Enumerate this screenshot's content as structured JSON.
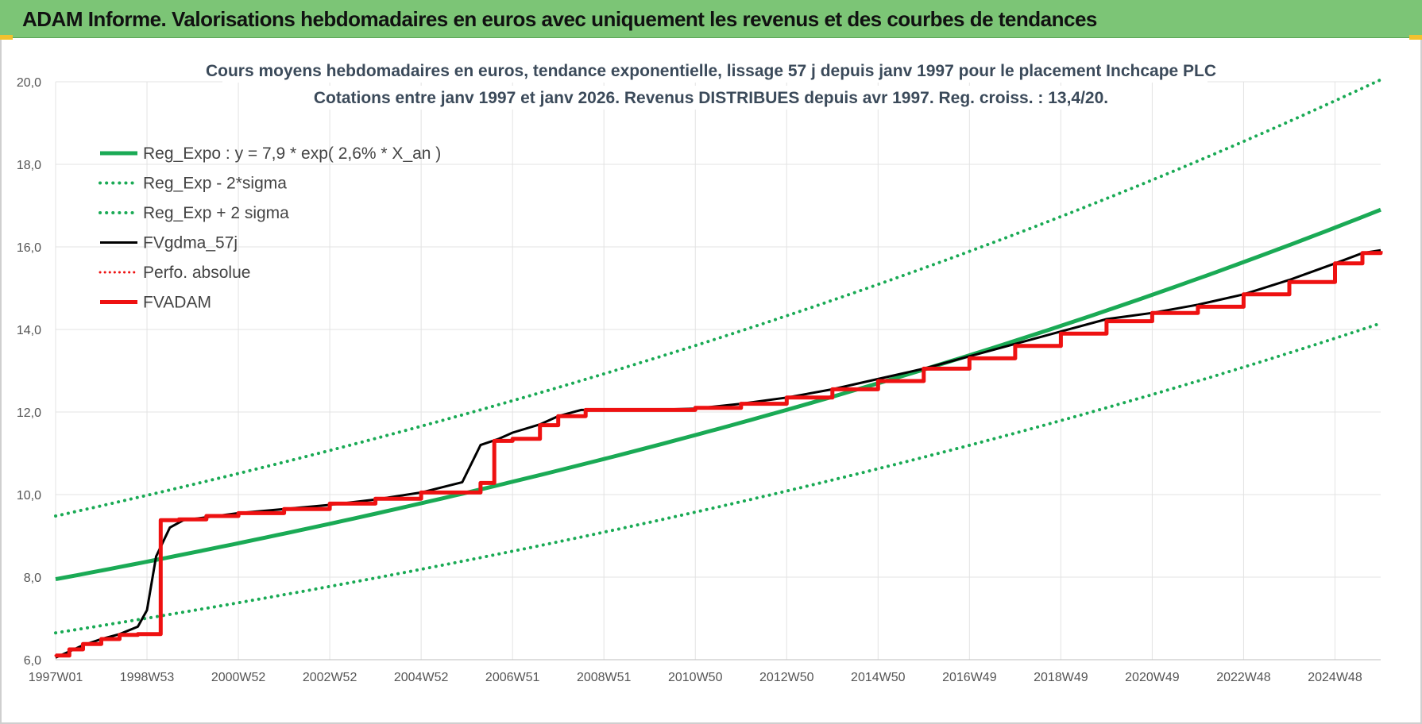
{
  "banner": {
    "title": "ADAM Informe. Valorisations hebdomadaires en euros avec uniquement les revenus et des courbes de tendances"
  },
  "colors": {
    "banner_bg": "#7cc576",
    "green": "#1aaa55",
    "red": "#ee1111",
    "black": "#000000",
    "accent": "#f2c12e"
  },
  "chart_data": {
    "type": "line",
    "title": "Cours moyens hebdomadaires en euros, tendance exponentielle, lissage 57 j depuis janv 1997 pour le placement Inchcape PLC",
    "subtitle": "Cotations entre janv 1997 et janv 2026. Revenus DISTRIBUES depuis avr 1997. Reg. croiss. : 13,4/20.",
    "xlabel": "",
    "ylabel": "",
    "x_range": [
      1997.0,
      2026.0
    ],
    "ylim": [
      6.0,
      20.0
    ],
    "y_ticks": [
      "6,0",
      "8,0",
      "10,0",
      "12,0",
      "14,0",
      "16,0",
      "18,0",
      "20,0"
    ],
    "x_tick_labels": [
      "1997W01",
      "1998W53",
      "2000W52",
      "2002W52",
      "2004W52",
      "2006W51",
      "2008W51",
      "2010W50",
      "2012W50",
      "2014W50",
      "2016W49",
      "2018W49",
      "2020W49",
      "2022W48",
      "2024W48"
    ],
    "x_tick_years": [
      1997.0,
      1999.0,
      2001.0,
      2003.0,
      2005.0,
      2007.0,
      2009.0,
      2011.0,
      2013.0,
      2015.0,
      2017.0,
      2019.0,
      2021.0,
      2023.0,
      2025.0
    ],
    "grid": true,
    "legend_position": "top-left",
    "series": [
      {
        "name": "Reg_Expo : y = 7,9 * exp( 2,6% *  X_an )",
        "style": "solid-green-thick",
        "x": [
          1997.0,
          2026.0
        ],
        "y": [
          7.95,
          16.9
        ],
        "curve": "exponential"
      },
      {
        "name": "Reg_Exp - 2*sigma",
        "style": "dotted-green",
        "x": [
          1997.0,
          2026.0
        ],
        "y": [
          6.65,
          14.15
        ],
        "curve": "exponential"
      },
      {
        "name": "Reg_Exp + 2 sigma",
        "style": "dotted-green",
        "x": [
          1997.0,
          2026.0
        ],
        "y": [
          9.48,
          20.05
        ],
        "curve": "exponential"
      },
      {
        "name": "FVgdma_57j",
        "style": "solid-black",
        "x": [
          1997.0,
          1997.3,
          1997.6,
          1998.0,
          1998.4,
          1998.8,
          1999.0,
          1999.2,
          1999.5,
          1999.8,
          2000.3,
          2001.0,
          2002.0,
          2003.0,
          2004.0,
          2005.0,
          2005.9,
          2006.3,
          2006.7,
          2007.0,
          2007.6,
          2008.0,
          2008.5,
          2010.0,
          2011.0,
          2012.0,
          2013.0,
          2014.0,
          2015.0,
          2016.0,
          2017.0,
          2018.0,
          2019.0,
          2020.0,
          2021.0,
          2022.0,
          2023.0,
          2024.0,
          2025.0,
          2025.6,
          2026.0
        ],
        "y": [
          6.05,
          6.2,
          6.35,
          6.5,
          6.62,
          6.8,
          7.2,
          8.5,
          9.2,
          9.38,
          9.45,
          9.55,
          9.65,
          9.75,
          9.88,
          10.05,
          10.3,
          11.2,
          11.35,
          11.5,
          11.7,
          11.9,
          12.05,
          12.05,
          12.08,
          12.2,
          12.35,
          12.55,
          12.8,
          13.05,
          13.35,
          13.65,
          13.95,
          14.25,
          14.4,
          14.6,
          14.85,
          15.2,
          15.6,
          15.85,
          15.92
        ]
      },
      {
        "name": "Perfo. absolue",
        "style": "dotted-red",
        "x": [
          1997.0,
          1997.3,
          1997.6,
          1998.0,
          1998.4,
          1998.8,
          1999.0,
          1999.3,
          1999.7,
          2000.3,
          2001.0,
          2002.0,
          2003.0,
          2004.0,
          2005.0,
          2006.3,
          2006.6,
          2007.0,
          2007.6,
          2008.0,
          2008.6,
          2010.0,
          2011.0,
          2012.0,
          2013.0,
          2014.0,
          2015.0,
          2016.0,
          2017.0,
          2018.0,
          2019.0,
          2020.0,
          2021.0,
          2022.0,
          2023.0,
          2024.0,
          2025.0,
          2025.6,
          2026.0
        ],
        "y": [
          6.1,
          6.25,
          6.38,
          6.5,
          6.6,
          6.62,
          6.62,
          9.38,
          9.4,
          9.48,
          9.55,
          9.65,
          9.78,
          9.9,
          10.05,
          10.28,
          11.3,
          11.35,
          11.68,
          11.9,
          12.05,
          12.05,
          12.1,
          12.2,
          12.35,
          12.55,
          12.75,
          13.05,
          13.3,
          13.6,
          13.9,
          14.2,
          14.4,
          14.55,
          14.85,
          15.15,
          15.6,
          15.85,
          15.9
        ]
      },
      {
        "name": "FVADAM",
        "style": "solid-red-thick",
        "x": [
          1997.0,
          1997.3,
          1997.6,
          1998.0,
          1998.4,
          1998.8,
          1999.0,
          1999.3,
          1999.7,
          2000.3,
          2001.0,
          2002.0,
          2003.0,
          2004.0,
          2005.0,
          2006.3,
          2006.6,
          2007.0,
          2007.6,
          2008.0,
          2008.6,
          2010.0,
          2011.0,
          2012.0,
          2013.0,
          2014.0,
          2015.0,
          2016.0,
          2017.0,
          2018.0,
          2019.0,
          2020.0,
          2021.0,
          2022.0,
          2023.0,
          2024.0,
          2025.0,
          2025.6,
          2026.0
        ],
        "y": [
          6.1,
          6.25,
          6.38,
          6.5,
          6.6,
          6.62,
          6.62,
          9.38,
          9.4,
          9.48,
          9.55,
          9.65,
          9.78,
          9.9,
          10.05,
          10.28,
          11.3,
          11.35,
          11.68,
          11.9,
          12.05,
          12.05,
          12.1,
          12.2,
          12.35,
          12.55,
          12.75,
          13.05,
          13.3,
          13.6,
          13.9,
          14.2,
          14.4,
          14.55,
          14.85,
          15.15,
          15.6,
          15.85,
          15.9
        ]
      }
    ]
  }
}
